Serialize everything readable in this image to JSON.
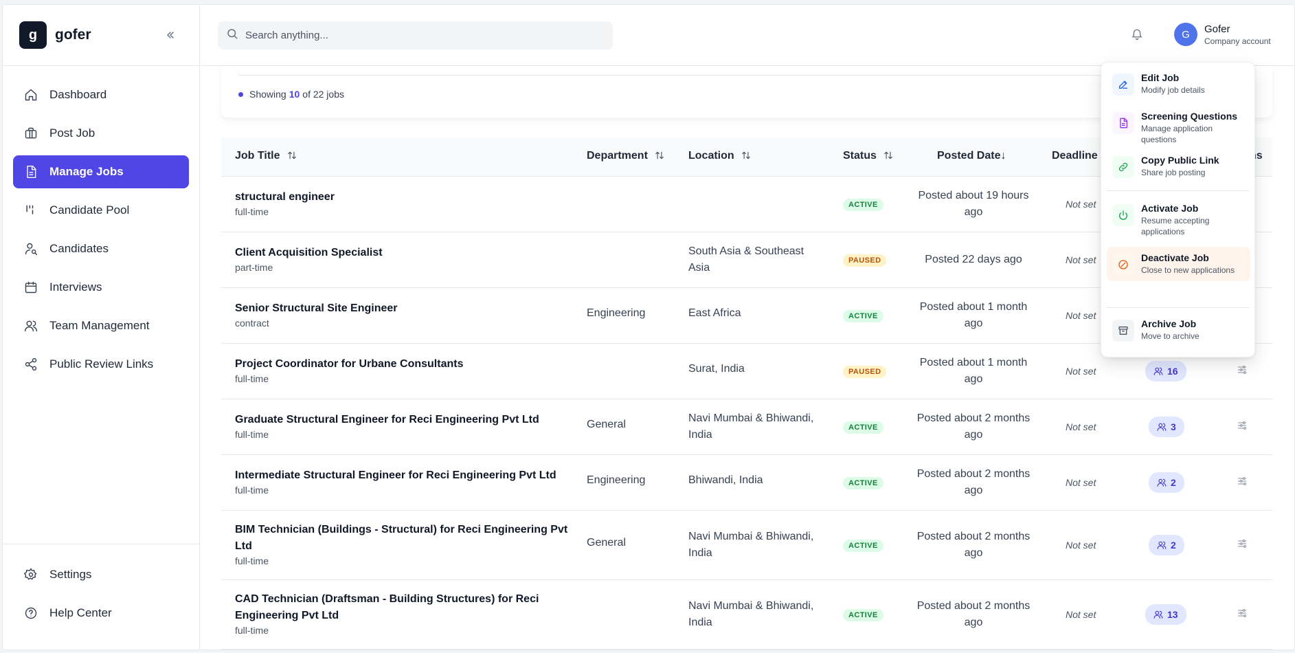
{
  "brand": {
    "logo_letter": "g",
    "name": "gofer"
  },
  "sidebar": {
    "items": [
      {
        "label": "Dashboard",
        "icon": "home-icon"
      },
      {
        "label": "Post Job",
        "icon": "briefcase-icon"
      },
      {
        "label": "Manage Jobs",
        "icon": "document-icon",
        "active": true
      },
      {
        "label": "Candidate Pool",
        "icon": "pool-icon"
      },
      {
        "label": "Candidates",
        "icon": "user-search-icon"
      },
      {
        "label": "Interviews",
        "icon": "calendar-icon"
      },
      {
        "label": "Team Management",
        "icon": "users-icon"
      },
      {
        "label": "Public Review Links",
        "icon": "share-icon"
      }
    ],
    "bottom": [
      {
        "label": "Settings",
        "icon": "gear-icon"
      },
      {
        "label": "Help Center",
        "icon": "help-icon"
      }
    ]
  },
  "header": {
    "search_placeholder": "Search anything...",
    "account": {
      "initial": "G",
      "name": "Gofer",
      "type": "Company account"
    }
  },
  "summary": {
    "prefix": "Showing",
    "shown": "10",
    "middle": "of 22 jobs"
  },
  "table": {
    "headers": {
      "title": "Job Title",
      "department": "Department",
      "location": "Location",
      "status": "Status",
      "posted": "Posted Date↓",
      "deadline": "Deadline",
      "actions": "ns"
    },
    "rows": [
      {
        "title": "structural engineer",
        "type": "full-time",
        "department": "",
        "location": "",
        "status": "ACTIVE",
        "posted": "Posted about 19 hours ago",
        "deadline": "Not set",
        "candidates": ""
      },
      {
        "title": "Client Acquisition Specialist",
        "type": "part-time",
        "department": "",
        "location": "South Asia & Southeast Asia",
        "status": "PAUSED",
        "posted": "Posted 22 days ago",
        "deadline": "Not set",
        "candidates": ""
      },
      {
        "title": "Senior Structural Site Engineer",
        "type": "contract",
        "department": "Engineering",
        "location": "East Africa",
        "status": "ACTIVE",
        "posted": "Posted about 1 month ago",
        "deadline": "Not set",
        "candidates": ""
      },
      {
        "title": "Project Coordinator for Urbane Consultants",
        "type": "full-time",
        "department": "",
        "location": "Surat, India",
        "status": "PAUSED",
        "posted": "Posted about 1 month ago",
        "deadline": "Not set",
        "candidates": "16"
      },
      {
        "title": "Graduate Structural Engineer for Reci Engineering Pvt Ltd",
        "type": "full-time",
        "department": "General",
        "location": "Navi Mumbai & Bhiwandi, India",
        "status": "ACTIVE",
        "posted": "Posted about 2 months ago",
        "deadline": "Not set",
        "candidates": "3"
      },
      {
        "title": "Intermediate Structural Engineer for Reci Engineering Pvt Ltd",
        "type": "full-time",
        "department": "Engineering",
        "location": "Bhiwandi, India",
        "status": "ACTIVE",
        "posted": "Posted about 2 months ago",
        "deadline": "Not set",
        "candidates": "2"
      },
      {
        "title": "BIM Technician (Buildings - Structural) for Reci Engineering Pvt Ltd",
        "type": "full-time",
        "department": "General",
        "location": "Navi Mumbai & Bhiwandi, India",
        "status": "ACTIVE",
        "posted": "Posted about 2 months ago",
        "deadline": "Not set",
        "candidates": "2"
      },
      {
        "title": "CAD Technician (Draftsman - Building Structures) for Reci Engineering Pvt Ltd",
        "type": "full-time",
        "department": "",
        "location": "Navi Mumbai & Bhiwandi, India",
        "status": "ACTIVE",
        "posted": "Posted about 2 months ago",
        "deadline": "Not set",
        "candidates": "13"
      }
    ]
  },
  "menu": {
    "items": [
      {
        "title": "Edit Job",
        "sub": "Modify job details",
        "icon": "edit-icon",
        "color": "#2563eb",
        "bg": "#eff6ff"
      },
      {
        "title": "Screening Questions",
        "sub": "Manage application questions",
        "icon": "document-icon",
        "color": "#9333ea",
        "bg": "#faf5ff"
      },
      {
        "title": "Copy Public Link",
        "sub": "Share job posting",
        "icon": "link-icon",
        "color": "#16a34a",
        "bg": "#f0fdf4"
      },
      {
        "title": "Activate Job",
        "sub": "Resume accepting applications",
        "icon": "power-icon",
        "color": "#16a34a",
        "bg": "#f0fdf4"
      },
      {
        "title": "Deactivate Job",
        "sub": "Close to new applications",
        "icon": "ban-icon",
        "color": "#ea580c",
        "bg": "#fff7ed"
      },
      {
        "title": "Archive Job",
        "sub": "Move to archive",
        "icon": "archive-icon",
        "color": "#4b5563",
        "bg": "#f3f4f6"
      }
    ]
  },
  "colors": {
    "accent": "#4f46e5",
    "active_badge": "#15803d",
    "paused_badge": "#b45309"
  }
}
